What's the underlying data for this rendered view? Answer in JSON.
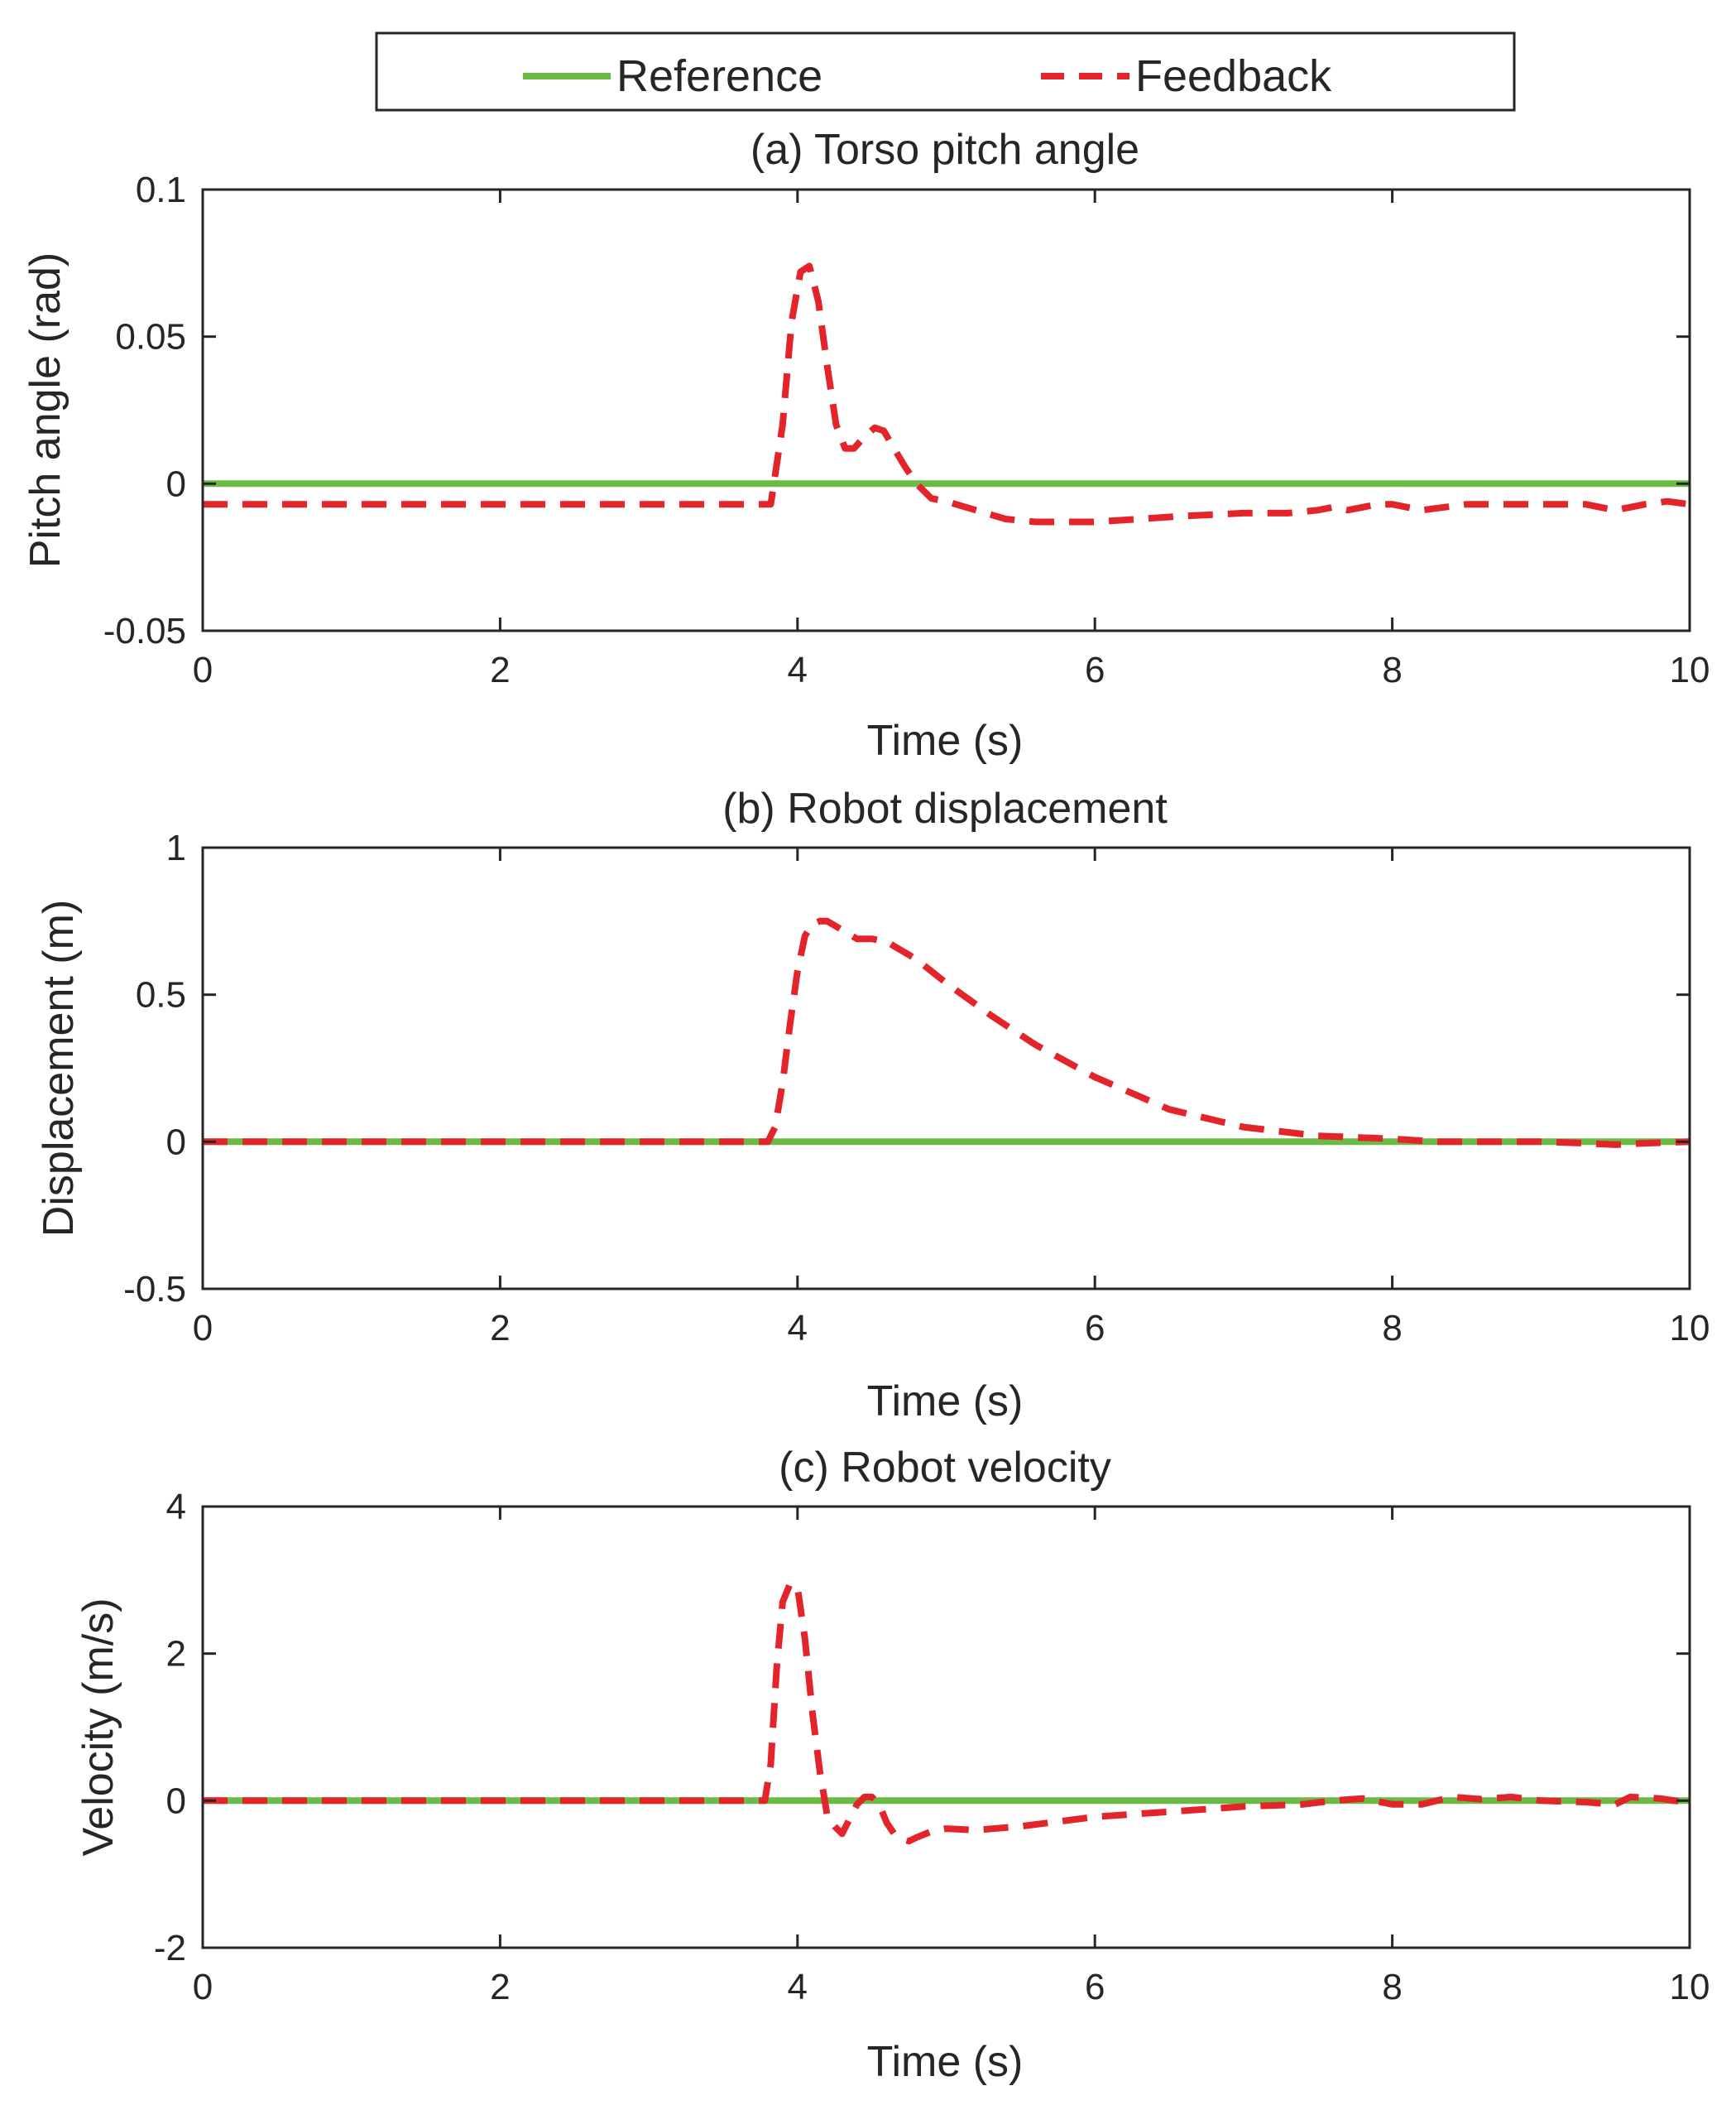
{
  "chart_data": {
    "type": "line",
    "legend": {
      "placement": "top-center",
      "entries": [
        {
          "name": "Reference",
          "color": "#6aba45",
          "style": "solid"
        },
        {
          "name": "Feedback",
          "color": "#e3242b",
          "style": "dashed"
        }
      ]
    },
    "panels": [
      {
        "id": "a",
        "title": "(a) Torso pitch angle",
        "xlabel": "Time (s)",
        "ylabel": "Pitch angle (rad)",
        "xlim": [
          0,
          10
        ],
        "ylim": [
          -0.05,
          0.1
        ],
        "xticks": [
          0,
          2,
          4,
          6,
          8,
          10
        ],
        "xtick_labels": [
          "0",
          "2",
          "4",
          "6",
          "8",
          "10"
        ],
        "yticks": [
          -0.05,
          0,
          0.05,
          0.1
        ],
        "ytick_labels": [
          "-0.05",
          "0",
          "0.05",
          "0.1"
        ],
        "grid": false,
        "series": [
          {
            "name": "Reference",
            "x": [
              0,
              10
            ],
            "y": [
              0,
              0
            ]
          },
          {
            "name": "Feedback",
            "x": [
              0,
              3.82,
              3.9,
              3.96,
              4.02,
              4.08,
              4.14,
              4.2,
              4.26,
              4.32,
              4.38,
              4.45,
              4.52,
              4.58,
              4.65,
              4.72,
              4.8,
              4.9,
              5.0,
              5.2,
              5.4,
              5.6,
              5.8,
              6.0,
              6.3,
              6.6,
              7.0,
              7.3,
              7.5,
              7.6,
              7.7,
              7.8,
              7.9,
              8.0,
              8.1,
              8.2,
              8.35,
              8.5,
              8.7,
              8.9,
              9.1,
              9.3,
              9.4,
              9.5,
              9.6,
              9.7,
              9.85,
              10.0
            ],
            "y": [
              -0.007,
              -0.007,
              0.02,
              0.055,
              0.072,
              0.074,
              0.062,
              0.04,
              0.02,
              0.012,
              0.012,
              0.016,
              0.019,
              0.018,
              0.012,
              0.006,
              0.0,
              -0.005,
              -0.006,
              -0.009,
              -0.012,
              -0.013,
              -0.013,
              -0.013,
              -0.012,
              -0.011,
              -0.01,
              -0.01,
              -0.009,
              -0.008,
              -0.009,
              -0.008,
              -0.007,
              -0.007,
              -0.008,
              -0.009,
              -0.008,
              -0.007,
              -0.007,
              -0.007,
              -0.007,
              -0.007,
              -0.008,
              -0.009,
              -0.008,
              -0.007,
              -0.006,
              -0.007
            ]
          }
        ]
      },
      {
        "id": "b",
        "title": "(b) Robot displacement",
        "xlabel": "Time (s)",
        "ylabel": "Displacement (m)",
        "xlim": [
          0,
          10
        ],
        "ylim": [
          -0.5,
          1
        ],
        "xticks": [
          0,
          2,
          4,
          6,
          8,
          10
        ],
        "xtick_labels": [
          "0",
          "2",
          "4",
          "6",
          "8",
          "10"
        ],
        "yticks": [
          -0.5,
          0,
          0.5,
          1
        ],
        "ytick_labels": [
          "-0.5",
          "0",
          "0.5",
          "1"
        ],
        "grid": false,
        "series": [
          {
            "name": "Reference",
            "x": [
              0,
              10
            ],
            "y": [
              0,
              0
            ]
          },
          {
            "name": "Feedback",
            "x": [
              0,
              3.8,
              3.85,
              3.9,
              3.95,
              4.0,
              4.05,
              4.1,
              4.15,
              4.2,
              4.3,
              4.4,
              4.5,
              4.6,
              4.8,
              5.0,
              5.3,
              5.6,
              6.0,
              6.5,
              7.0,
              7.5,
              8.0,
              8.3,
              8.6,
              9.0,
              9.3,
              9.5,
              9.7,
              10.0
            ],
            "y": [
              0,
              0,
              0.05,
              0.2,
              0.4,
              0.58,
              0.7,
              0.74,
              0.75,
              0.75,
              0.72,
              0.69,
              0.69,
              0.68,
              0.62,
              0.54,
              0.43,
              0.33,
              0.22,
              0.11,
              0.05,
              0.02,
              0.01,
              0.0,
              0.0,
              0.0,
              -0.005,
              -0.01,
              -0.005,
              0.0
            ]
          }
        ]
      },
      {
        "id": "c",
        "title": "(c) Robot velocity",
        "xlabel": "Time (s)",
        "ylabel": "Velocity (m/s)",
        "xlim": [
          0,
          10
        ],
        "ylim": [
          -2,
          4
        ],
        "xticks": [
          0,
          2,
          4,
          6,
          8,
          10
        ],
        "xtick_labels": [
          "0",
          "2",
          "4",
          "6",
          "8",
          "10"
        ],
        "yticks": [
          -2,
          0,
          2,
          4
        ],
        "ytick_labels": [
          "-2",
          "0",
          "2",
          "4"
        ],
        "grid": false,
        "series": [
          {
            "name": "Reference",
            "x": [
              0,
              10
            ],
            "y": [
              0,
              0
            ]
          },
          {
            "name": "Feedback",
            "x": [
              0,
              3.78,
              3.82,
              3.86,
              3.9,
              3.95,
              4.0,
              4.05,
              4.1,
              4.15,
              4.2,
              4.25,
              4.3,
              4.35,
              4.4,
              4.45,
              4.5,
              4.55,
              4.6,
              4.65,
              4.7,
              4.75,
              4.8,
              4.9,
              5.0,
              5.2,
              5.5,
              6.0,
              6.5,
              7.0,
              7.4,
              7.6,
              7.8,
              8.0,
              8.2,
              8.4,
              8.6,
              8.8,
              9.0,
              9.3,
              9.5,
              9.6,
              9.8,
              10.0
            ],
            "y": [
              0,
              0,
              0.5,
              1.8,
              2.7,
              2.95,
              2.9,
              2.2,
              1.2,
              0.4,
              -0.2,
              -0.35,
              -0.45,
              -0.25,
              -0.05,
              0.05,
              0.05,
              -0.05,
              -0.3,
              -0.45,
              -0.52,
              -0.55,
              -0.5,
              -0.42,
              -0.38,
              -0.4,
              -0.35,
              -0.22,
              -0.15,
              -0.08,
              -0.05,
              0.0,
              0.03,
              -0.05,
              -0.05,
              0.05,
              0.02,
              0.05,
              0.0,
              -0.02,
              -0.05,
              0.05,
              0.03,
              -0.03
            ]
          }
        ]
      }
    ]
  }
}
